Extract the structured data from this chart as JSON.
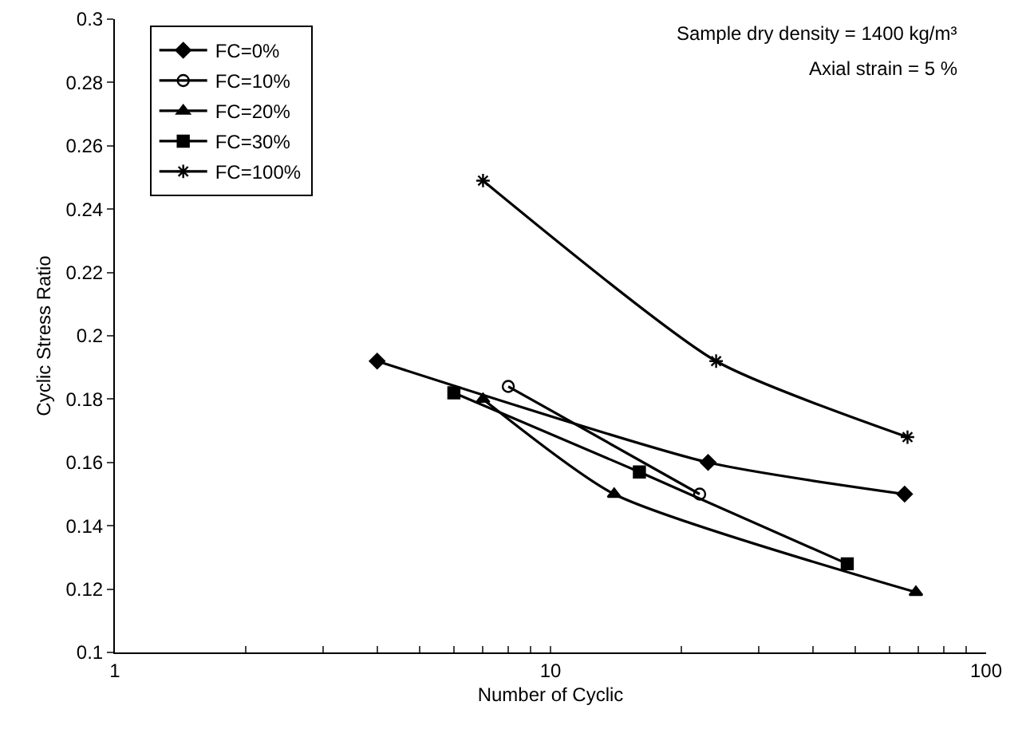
{
  "chart_data": {
    "type": "line",
    "xlabel": "Number of Cyclic",
    "ylabel": "Cyclic Stress Ratio",
    "log": "x",
    "grid": false,
    "legend": "top left",
    "line_style": "solid",
    "xlim": [
      1,
      100
    ],
    "xticks": [
      1,
      {
        "value": 2,
        "label": null
      },
      {
        "value": 3,
        "label": null
      },
      {
        "value": 4,
        "label": null
      },
      {
        "value": 5,
        "label": null
      },
      {
        "value": 6,
        "label": null
      },
      {
        "value": 7,
        "label": null
      },
      {
        "value": 8,
        "label": null
      },
      {
        "value": 9,
        "label": null
      },
      10,
      {
        "value": 20,
        "label": null
      },
      {
        "value": 30,
        "label": null
      },
      {
        "value": 40,
        "label": null
      },
      {
        "value": 50,
        "label": null
      },
      {
        "value": 60,
        "label": null
      },
      {
        "value": 70,
        "label": null
      },
      {
        "value": 80,
        "label": null
      },
      {
        "value": 90,
        "label": null
      },
      100
    ],
    "ylim": [
      0.1,
      0.3
    ],
    "yticks": [
      0.1,
      0.12,
      0.14,
      0.16,
      0.18,
      0.2,
      0.22,
      0.24,
      0.26,
      0.28,
      0.3
    ],
    "annotations": [
      "Sample dry density = 1400 kg/m³",
      "Axial strain = 5 %"
    ],
    "series": [
      {
        "name": "FC=0%",
        "color": "#000000",
        "marker": "diamond",
        "x": [
          4,
          23,
          65
        ],
        "values": [
          0.192,
          0.16,
          0.15
        ]
      },
      {
        "name": "FC=10%",
        "color": "#000000",
        "marker": "circle",
        "x": [
          8,
          22
        ],
        "values": [
          0.184,
          0.15
        ]
      },
      {
        "name": "FC=20%",
        "color": "#000000",
        "marker": "triangle",
        "x": [
          7,
          14,
          69
        ],
        "values": [
          0.18,
          0.15,
          0.119
        ]
      },
      {
        "name": "FC=30%",
        "color": "#000000",
        "marker": "square",
        "x": [
          6,
          16,
          48
        ],
        "values": [
          0.182,
          0.157,
          0.128
        ]
      },
      {
        "name": "FC=100%",
        "color": "#000000",
        "marker": "cross",
        "x": [
          7,
          24,
          66
        ],
        "values": [
          0.249,
          0.192,
          0.168
        ]
      }
    ]
  }
}
